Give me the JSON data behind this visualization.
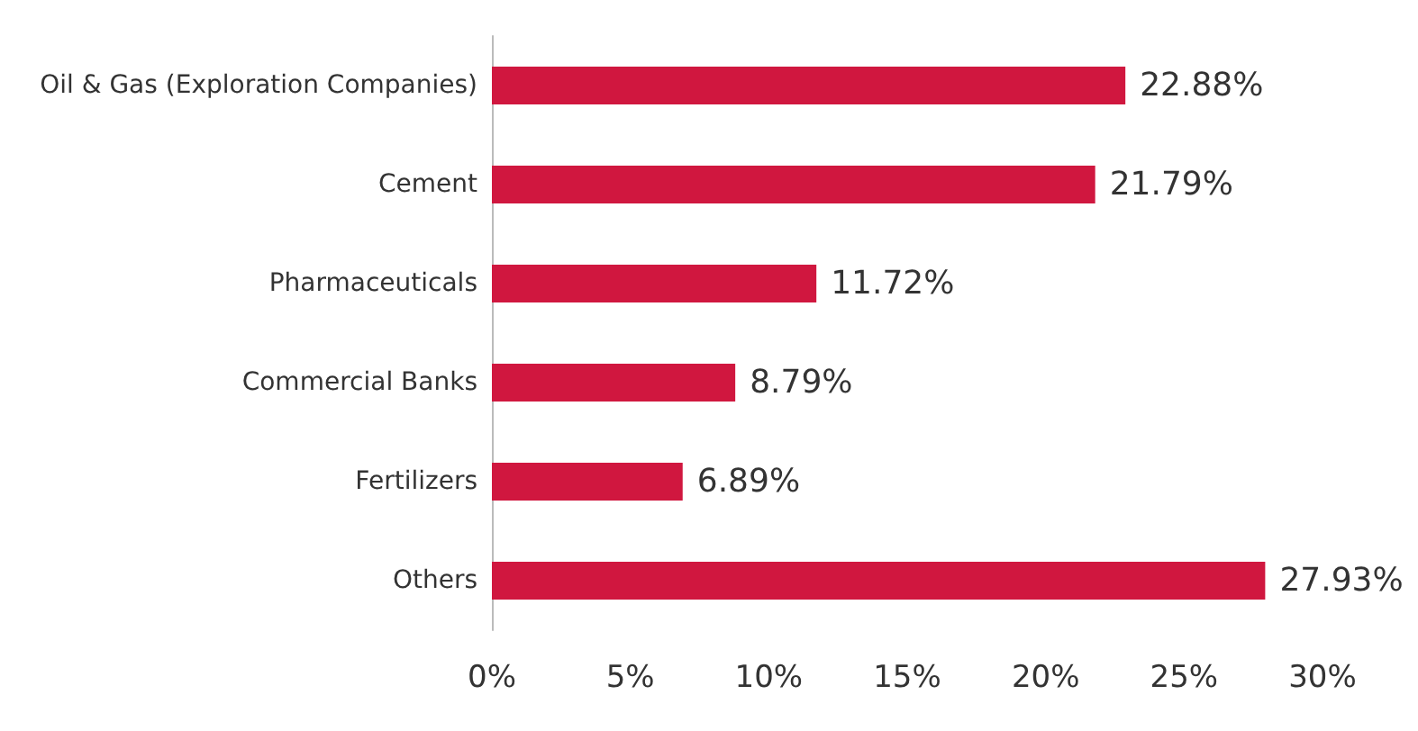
{
  "chart_data": {
    "type": "bar",
    "orientation": "horizontal",
    "categories": [
      "Oil & Gas (Exploration Companies)",
      "Cement",
      "Pharmaceuticals",
      "Commercial Banks",
      "Fertilizers",
      "Others"
    ],
    "values": [
      22.88,
      21.79,
      11.72,
      8.79,
      6.89,
      27.93
    ],
    "value_labels": [
      "22.88%",
      "21.79%",
      "11.72%",
      "8.79%",
      "6.89%",
      "27.93%"
    ],
    "color": "#d0173f",
    "xlim": [
      0,
      30
    ],
    "xticks": [
      {
        "value": 0,
        "label": "0%"
      },
      {
        "value": 5,
        "label": "5%"
      },
      {
        "value": 10,
        "label": "10%"
      },
      {
        "value": 15,
        "label": "15%"
      },
      {
        "value": 20,
        "label": "20%"
      },
      {
        "value": 25,
        "label": "25%"
      },
      {
        "value": 30,
        "label": "30%"
      }
    ],
    "grid": false
  }
}
